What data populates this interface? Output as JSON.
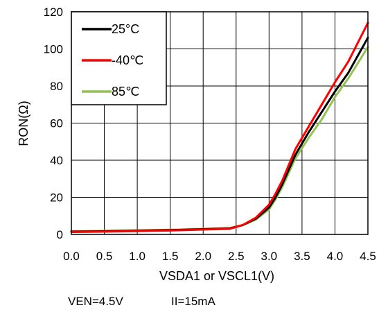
{
  "chart_data": {
    "type": "line",
    "xlabel": "VSDA1 or VSCL1(V)",
    "ylabel": "RON(Ω)",
    "xlim": [
      0,
      4.5
    ],
    "ylim": [
      0,
      120
    ],
    "x_ticks": [
      "0.0",
      "0.5",
      "1.0",
      "1.5",
      "2.0",
      "2.5",
      "3.0",
      "3.5",
      "4.0",
      "4.5"
    ],
    "y_ticks": [
      "0",
      "20",
      "40",
      "60",
      "80",
      "100",
      "120"
    ],
    "grid": true,
    "legend_position": "top-left",
    "conditions": [
      "VEN=4.5V",
      "II=15mA"
    ],
    "series": [
      {
        "name": "25°C",
        "color": "#000000",
        "x": [
          0.0,
          0.5,
          1.0,
          1.5,
          2.0,
          2.4,
          2.6,
          2.8,
          3.0,
          3.1,
          3.2,
          3.4,
          3.6,
          3.8,
          4.0,
          4.2,
          4.5
        ],
        "y": [
          1.5,
          1.7,
          2.0,
          2.3,
          2.8,
          3.2,
          5.0,
          8.5,
          14.5,
          20,
          27,
          43,
          55,
          66,
          77,
          87,
          106
        ]
      },
      {
        "name": "-40℃",
        "color": "#ff0000",
        "x": [
          0.0,
          0.5,
          1.0,
          1.5,
          2.0,
          2.4,
          2.6,
          2.8,
          3.0,
          3.1,
          3.2,
          3.4,
          3.6,
          3.8,
          4.0,
          4.2,
          4.5
        ],
        "y": [
          1.3,
          1.5,
          1.8,
          2.1,
          2.6,
          3.0,
          5.0,
          9.0,
          16,
          22,
          29,
          46,
          58,
          70,
          82,
          93,
          114
        ]
      },
      {
        "name": "85℃",
        "color": "#92c353",
        "x": [
          0.0,
          0.5,
          1.0,
          1.5,
          2.0,
          2.4,
          2.6,
          2.8,
          3.0,
          3.1,
          3.2,
          3.4,
          3.6,
          3.8,
          4.0,
          4.2,
          4.5
        ],
        "y": [
          1.7,
          1.9,
          2.2,
          2.5,
          3.0,
          3.4,
          5.0,
          8.0,
          13.5,
          19,
          25.5,
          41,
          52,
          62,
          74,
          84,
          101
        ]
      }
    ]
  }
}
